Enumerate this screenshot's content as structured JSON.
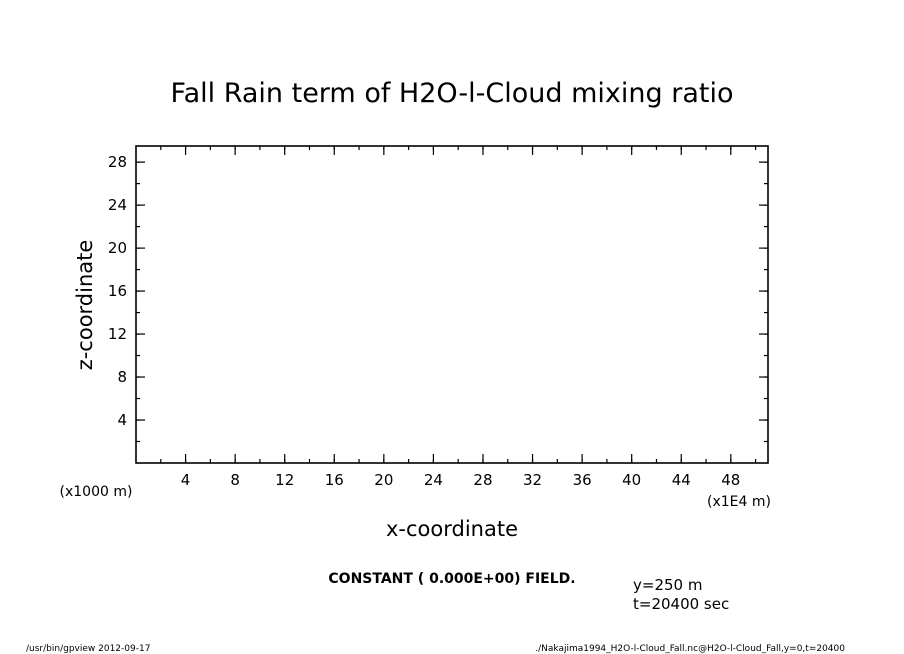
{
  "chart_data": {
    "type": "heatmap",
    "title": "Fall Rain term of H2O-l-Cloud mixing ratio",
    "xlabel": "x-coordinate",
    "ylabel": "z-coordinate",
    "x_unit": "(x1E4 m)",
    "y_unit": "(x1000 m)",
    "xlim": [
      0,
      51
    ],
    "ylim": [
      0,
      29.5
    ],
    "x_ticks": [
      4,
      8,
      12,
      16,
      20,
      24,
      28,
      32,
      36,
      40,
      44,
      48
    ],
    "y_ticks": [
      4,
      8,
      12,
      16,
      20,
      24,
      28
    ],
    "x_minor_step": 2,
    "y_minor_step": 2,
    "values": [],
    "field_note": "CONSTANT ( 0.000E+00) FIELD.",
    "annotations": [
      "y=250 m",
      "t=20400 sec"
    ]
  },
  "footer": {
    "left": "/usr/bin/gpview   2012-09-17",
    "right": "./Nakajima1994_H2O-l-Cloud_Fall.nc@H2O-l-Cloud_Fall,y=0,t=20400"
  }
}
